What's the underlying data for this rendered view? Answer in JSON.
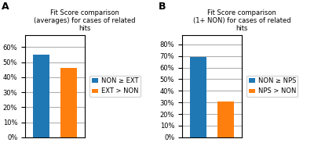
{
  "chart_data": [
    {
      "type": "bar",
      "title": "Fit Score comparison\n(averages) for cases of related\nhits",
      "annotations": [
        "A"
      ],
      "categories": [
        "NON ≥ EXT",
        "EXT > NON"
      ],
      "values": [
        0.55,
        0.46
      ],
      "ylim": [
        0,
        0.68
      ],
      "yticks": [
        {
          "value": 0.0,
          "label": "0%"
        },
        {
          "value": 0.1,
          "label": "10%"
        },
        {
          "value": 0.2,
          "label": "20%"
        },
        {
          "value": 0.3,
          "label": "30%"
        },
        {
          "value": 0.4,
          "label": "40%"
        },
        {
          "value": 0.5,
          "label": "50%"
        },
        {
          "value": 0.6,
          "label": "60%"
        }
      ],
      "grid": true,
      "legend": "center left",
      "tick_labels": "y"
    },
    {
      "type": "bar",
      "title": "Fit Score comparison\n(1+ NON) for cases of related\nhits",
      "annotations": [
        "B"
      ],
      "categories": [
        "NON ≥ NPS",
        "NPS > NON"
      ],
      "values": [
        0.69,
        0.31
      ],
      "ylim": [
        0,
        0.88
      ],
      "yticks": [
        {
          "value": 0.0,
          "label": "0%"
        },
        {
          "value": 0.1,
          "label": "10%"
        },
        {
          "value": 0.2,
          "label": "20%"
        },
        {
          "value": 0.3,
          "label": "30%"
        },
        {
          "value": 0.4,
          "label": "40%"
        },
        {
          "value": 0.5,
          "label": "50%"
        },
        {
          "value": 0.6,
          "label": "60%"
        },
        {
          "value": 0.7,
          "label": "70%"
        },
        {
          "value": 0.8,
          "label": "80%"
        }
      ],
      "grid": true,
      "legend": "center left",
      "tick_labels": "y"
    }
  ]
}
